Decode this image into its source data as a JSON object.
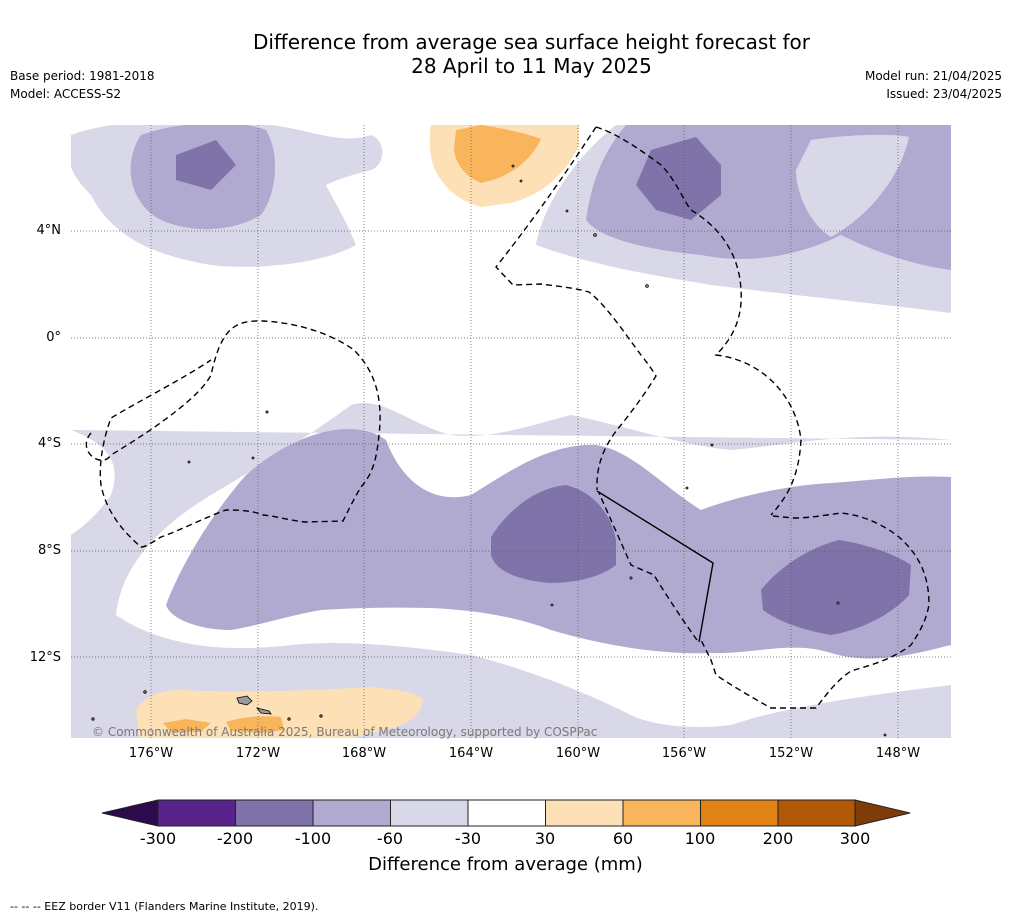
{
  "title": {
    "line1": "Difference from average sea surface height forecast for",
    "line2": "28 April to 11 May 2025"
  },
  "meta": {
    "base_period": "Base period: 1981-2018",
    "model": "Model: ACCESS-S2",
    "model_run": "Model run: 21/04/2025",
    "issued": "Issued: 23/04/2025"
  },
  "map": {
    "lat_labels": [
      "4°N",
      "0°",
      "4°S",
      "8°S",
      "12°S"
    ],
    "lon_labels": [
      "176°W",
      "172°W",
      "168°W",
      "164°W",
      "160°W",
      "156°W",
      "152°W",
      "148°W"
    ],
    "gridlines": true,
    "copyright": "© Commonwealth of Australia 2025, Bureau of Meteorology, supported by COSPPac",
    "colors": {
      "neg_300": "#2d0a4e",
      "neg_200": "#58238a",
      "neg_100": "#8073aa",
      "neg_60": "#b0aad0",
      "neg_30": "#d8d8e9",
      "neutral": "#ffffff",
      "pos_30": "#fde0b6",
      "pos_60": "#f9b55c",
      "pos_100": "#e08214",
      "pos_200": "#b35806",
      "pos_300": "#7f3b08"
    }
  },
  "colorbar": {
    "ticks": [
      "-300",
      "-200",
      "-100",
      "-60",
      "-30",
      "30",
      "60",
      "100",
      "200",
      "300"
    ],
    "label": "Difference from average (mm)",
    "colors": [
      "#58238a",
      "#8073aa",
      "#b0aad0",
      "#d8d8e9",
      "#ffffff",
      "#fde0b6",
      "#f9b55c",
      "#e08214",
      "#b35806"
    ],
    "under_color": "#2d0a4e",
    "over_color": "#7f3b08"
  },
  "footer": "--  --  -- EEZ border V11 (Flanders Marine Institute, 2019)."
}
